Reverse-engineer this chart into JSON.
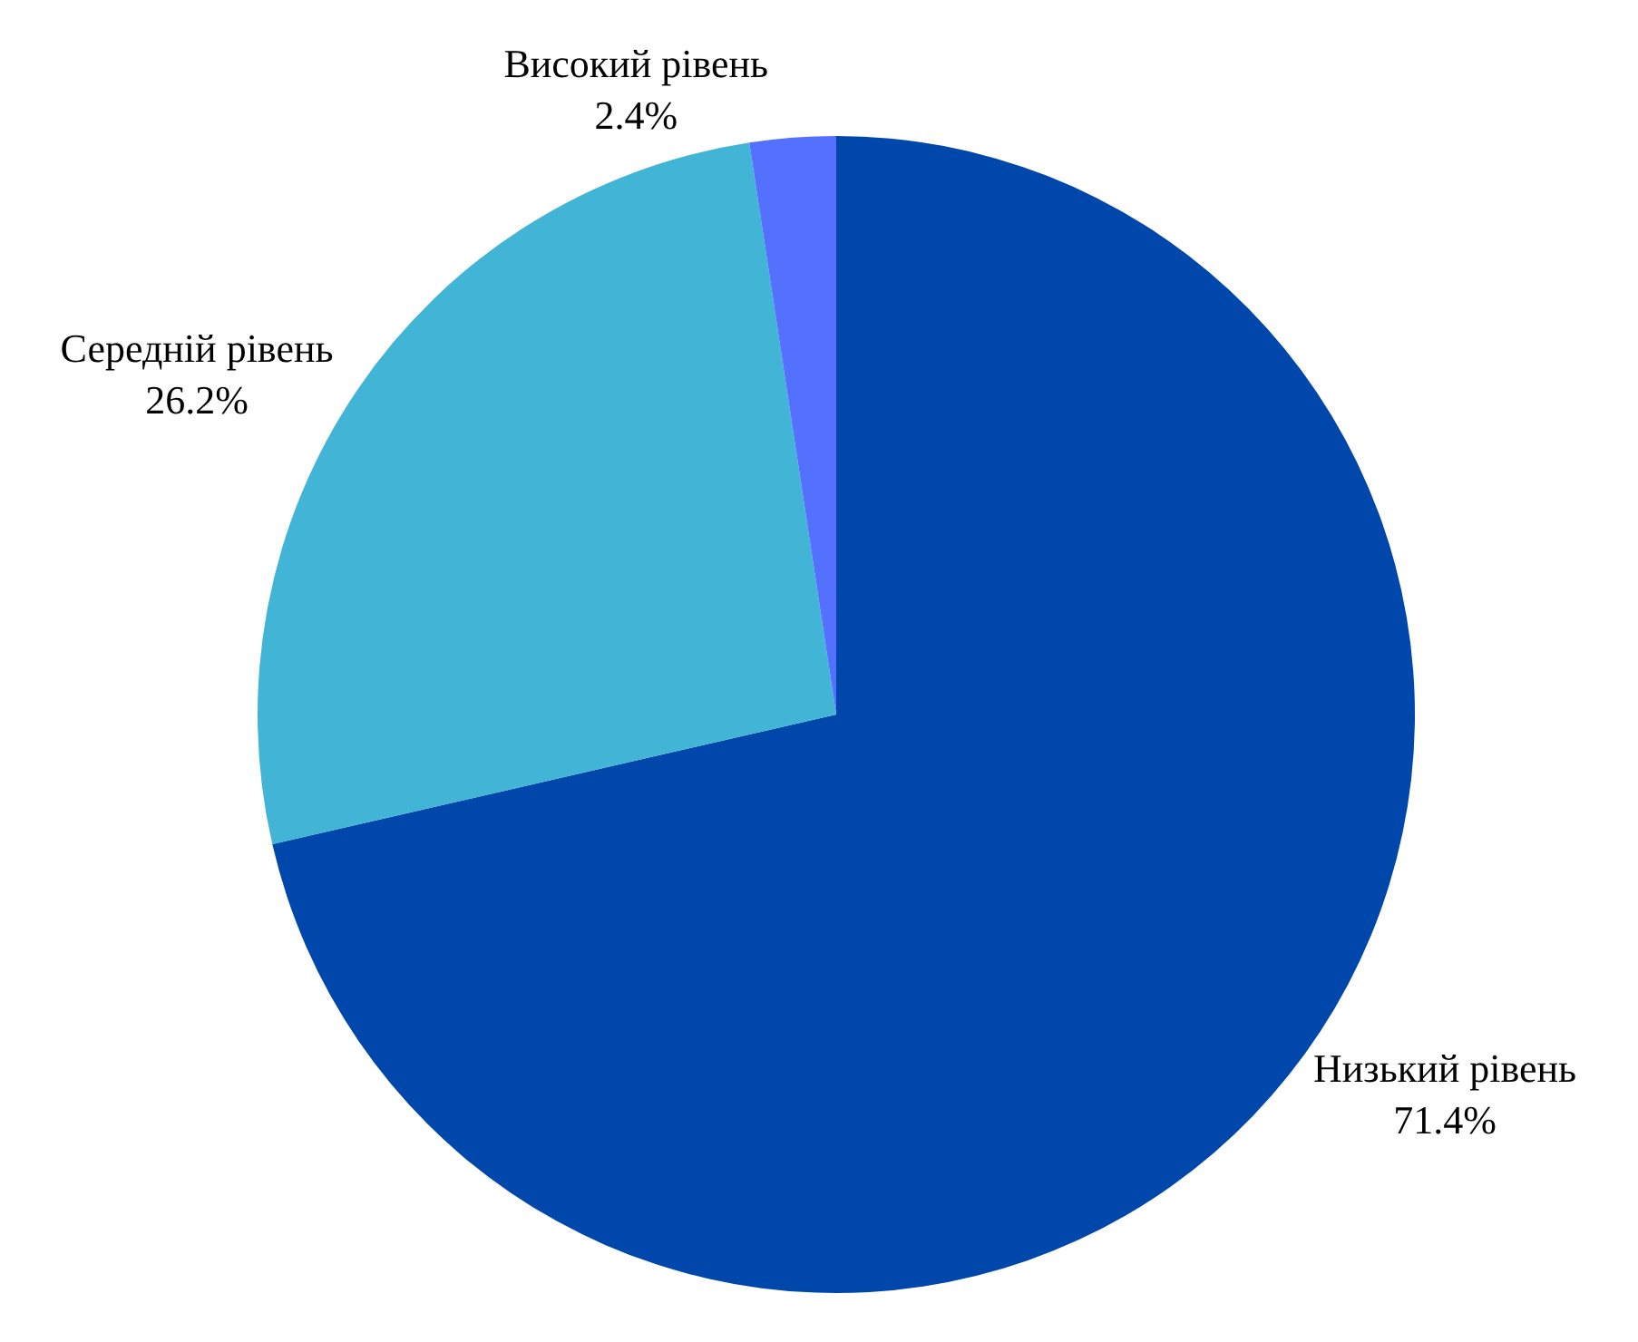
{
  "chart_data": {
    "type": "pie",
    "categories": [
      "Низький рівень",
      "Середній рівень",
      "Високий рівень"
    ],
    "values": [
      71.4,
      26.2,
      2.4
    ],
    "colors": [
      "#0047ab",
      "#42b4d6",
      "#5470ff"
    ],
    "value_labels": [
      "71.4%",
      "26.2%",
      "2.4%"
    ],
    "legend": false
  }
}
